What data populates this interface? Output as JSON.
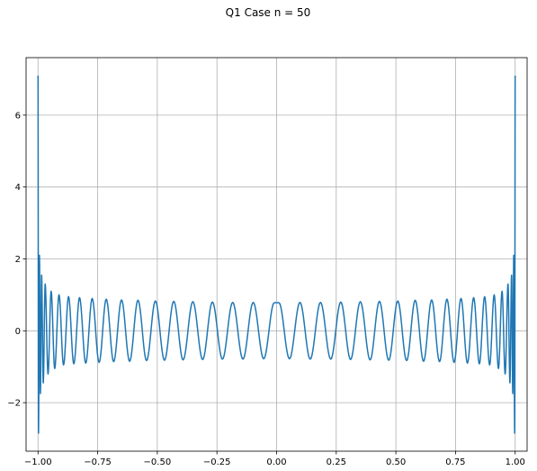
{
  "chart_data": {
    "type": "line",
    "title": "Q1 Case n = 50",
    "xlabel": "",
    "ylabel": "",
    "xlim": [
      -1.05,
      1.05
    ],
    "ylim": [
      -3.35,
      7.6
    ],
    "grid": true,
    "x_ticks": [
      -1.0,
      -0.75,
      -0.5,
      -0.25,
      0.0,
      0.25,
      0.5,
      0.75,
      1.0
    ],
    "x_tick_labels": [
      "−1.00",
      "−0.75",
      "−0.50",
      "−0.25",
      "0.00",
      "0.25",
      "0.50",
      "0.75",
      "1.00"
    ],
    "y_ticks": [
      -2,
      0,
      2,
      4,
      6
    ],
    "y_tick_labels": [
      "−2",
      "0",
      "2",
      "4",
      "6"
    ],
    "series": [
      {
        "color": "#1f77b4",
        "function": "Chebyshev-like oscillation of degree 50 on [-1, 1]; local extrema values listed",
        "points_x": [
          -1.0,
          -0.998,
          -0.994,
          -0.99,
          -0.985,
          -0.978,
          -0.97,
          -0.958,
          -0.945,
          -0.93,
          -0.912,
          -0.893,
          -0.872,
          -0.85,
          -0.826,
          -0.8,
          -0.773,
          -0.744,
          -0.714,
          -0.683,
          -0.65,
          -0.616,
          -0.581,
          -0.545,
          -0.508,
          -0.47,
          -0.431,
          -0.392,
          -0.351,
          -0.31,
          -0.269,
          -0.227,
          -0.184,
          -0.141,
          -0.098,
          -0.054,
          -0.01,
          0.01,
          0.054,
          0.098,
          0.141,
          0.184,
          0.227,
          0.269,
          0.31,
          0.351,
          0.392,
          0.431,
          0.47,
          0.508,
          0.545,
          0.581,
          0.616,
          0.65,
          0.683,
          0.714,
          0.744,
          0.773,
          0.8,
          0.826,
          0.85,
          0.872,
          0.893,
          0.912,
          0.93,
          0.945,
          0.958,
          0.97,
          0.978,
          0.985,
          0.99,
          0.994,
          0.998,
          1.0
        ],
        "points_y": [
          7.1,
          -2.85,
          2.1,
          -1.75,
          1.55,
          -1.45,
          1.3,
          -1.2,
          1.1,
          -1.05,
          1.0,
          -0.95,
          0.95,
          -0.92,
          0.92,
          -0.9,
          0.9,
          -0.88,
          0.88,
          -0.86,
          0.86,
          -0.85,
          0.85,
          -0.83,
          0.83,
          -0.82,
          0.82,
          -0.81,
          0.81,
          -0.8,
          0.8,
          -0.79,
          0.79,
          -0.79,
          0.79,
          -0.78,
          0.78,
          0.78,
          -0.78,
          0.79,
          -0.79,
          0.79,
          -0.79,
          0.8,
          -0.8,
          0.81,
          -0.81,
          0.82,
          -0.82,
          0.83,
          -0.83,
          0.85,
          -0.85,
          0.86,
          -0.86,
          0.88,
          -0.88,
          0.9,
          -0.9,
          0.92,
          -0.92,
          0.95,
          -0.95,
          1.0,
          -1.05,
          1.1,
          -1.2,
          1.3,
          -1.45,
          1.55,
          -1.75,
          2.1,
          -2.85,
          7.1
        ]
      }
    ]
  }
}
